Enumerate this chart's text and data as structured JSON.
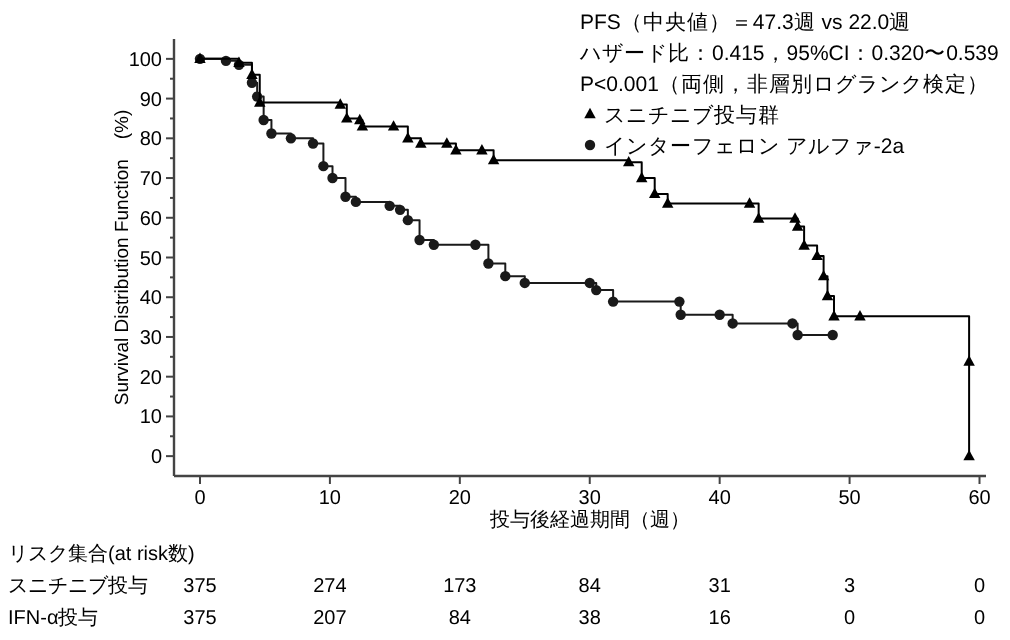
{
  "chart_data": [
    {
      "type": "step",
      "xlabel": "投与後経過期間（週）",
      "ylabel": "Survival Distribution Function　(%)",
      "xlim": [
        -2,
        60.5
      ],
      "ylim": [
        -5,
        105
      ],
      "xticks": [
        0,
        10,
        20,
        30,
        40,
        50,
        60
      ],
      "yticks": [
        0,
        10,
        20,
        30,
        40,
        50,
        60,
        70,
        80,
        90,
        100
      ],
      "line_style": "solid",
      "legend": "top right",
      "annotations": [
        "PFS（中央値）＝47.3週 vs 22.0週",
        "ハザード比：0.415，95%CI：0.320〜0.539",
        "P<0.001（両側，非層別ログランク検定）"
      ],
      "series": [
        {
          "name": "スニチニブ投与群",
          "color": "#000000",
          "marker": "triangle",
          "x": [
            0,
            3,
            4,
            4.6,
            10.8,
            11.3,
            12.3,
            12.5,
            14.9,
            16,
            17,
            19,
            19.7,
            21.7,
            22.6,
            33,
            34,
            35,
            36,
            42.3,
            43,
            45.8,
            46,
            46.5,
            47.5,
            48,
            48.3,
            48.8,
            50.8,
            59.2,
            59.2
          ],
          "values": [
            100,
            99,
            96,
            89,
            88.5,
            85,
            84.6,
            83,
            83,
            80,
            78.7,
            78.7,
            77,
            77,
            74.5,
            74,
            70,
            66,
            63.6,
            63.6,
            59.8,
            59.8,
            57.8,
            53,
            50.4,
            45.3,
            40.3,
            35.2,
            35.2,
            23.8,
            0
          ]
        },
        {
          "name": "インターフェロン アルファ-2a",
          "color": "#1a1a1a",
          "marker": "circle",
          "x": [
            0,
            2,
            3,
            4,
            4.4,
            4.9,
            5.5,
            7,
            8.7,
            9.5,
            10.2,
            11.2,
            12,
            14.6,
            15.4,
            16,
            16.9,
            18,
            21.2,
            22.2,
            23.5,
            25,
            30,
            30.5,
            31.8,
            36.9,
            37,
            40,
            41,
            45.6,
            46,
            48.7
          ],
          "values": [
            100,
            99.5,
            98.5,
            94,
            90.5,
            84.6,
            81.2,
            80,
            78.7,
            73,
            70,
            65.3,
            64,
            63,
            62,
            59.4,
            54.4,
            53.2,
            53.2,
            48.5,
            45.3,
            43.6,
            43.6,
            41.8,
            38.9,
            38.9,
            35.6,
            35.6,
            33.4,
            33.4,
            30.5,
            30.5
          ]
        }
      ]
    },
    {
      "type": "other",
      "title": "リスク集合(at risk数)",
      "annotations": [
        "スニチニブ投与",
        "375",
        "274",
        "173",
        "84",
        "31",
        "3",
        "0",
        "IFN-α投与",
        "375",
        "207",
        "84",
        "38",
        "16",
        "0",
        "0"
      ]
    }
  ]
}
